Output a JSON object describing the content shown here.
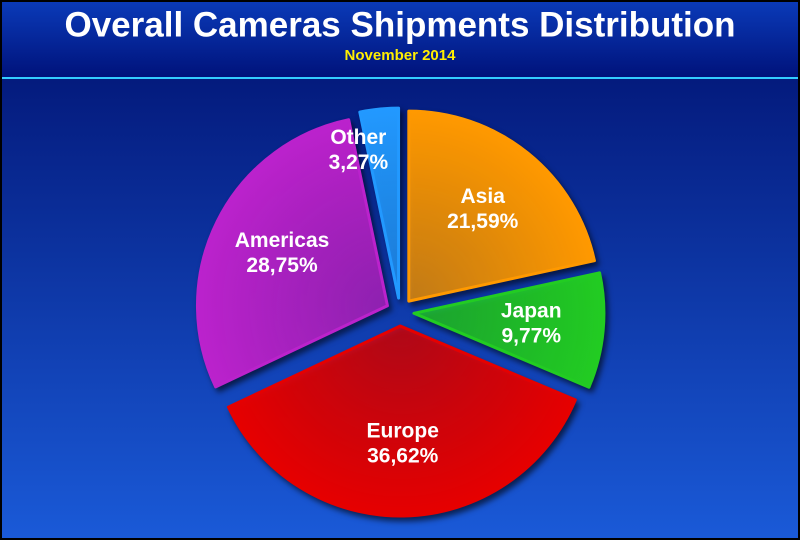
{
  "chart_data": {
    "type": "pie",
    "title": "Overall Cameras Shipments Distribution",
    "subtitle": "November 2014",
    "categories": [
      "Asia",
      "Japan",
      "Europe",
      "Americas",
      "Other"
    ],
    "values": [
      21.59,
      9.77,
      36.62,
      28.75,
      3.27
    ],
    "value_labels": [
      "21,59%",
      "9,77%",
      "36,62%",
      "28,75%",
      "3,27%"
    ],
    "colors": [
      "#ff9900",
      "#22cc22",
      "#e60000",
      "#bb22cc",
      "#2299ff"
    ]
  }
}
